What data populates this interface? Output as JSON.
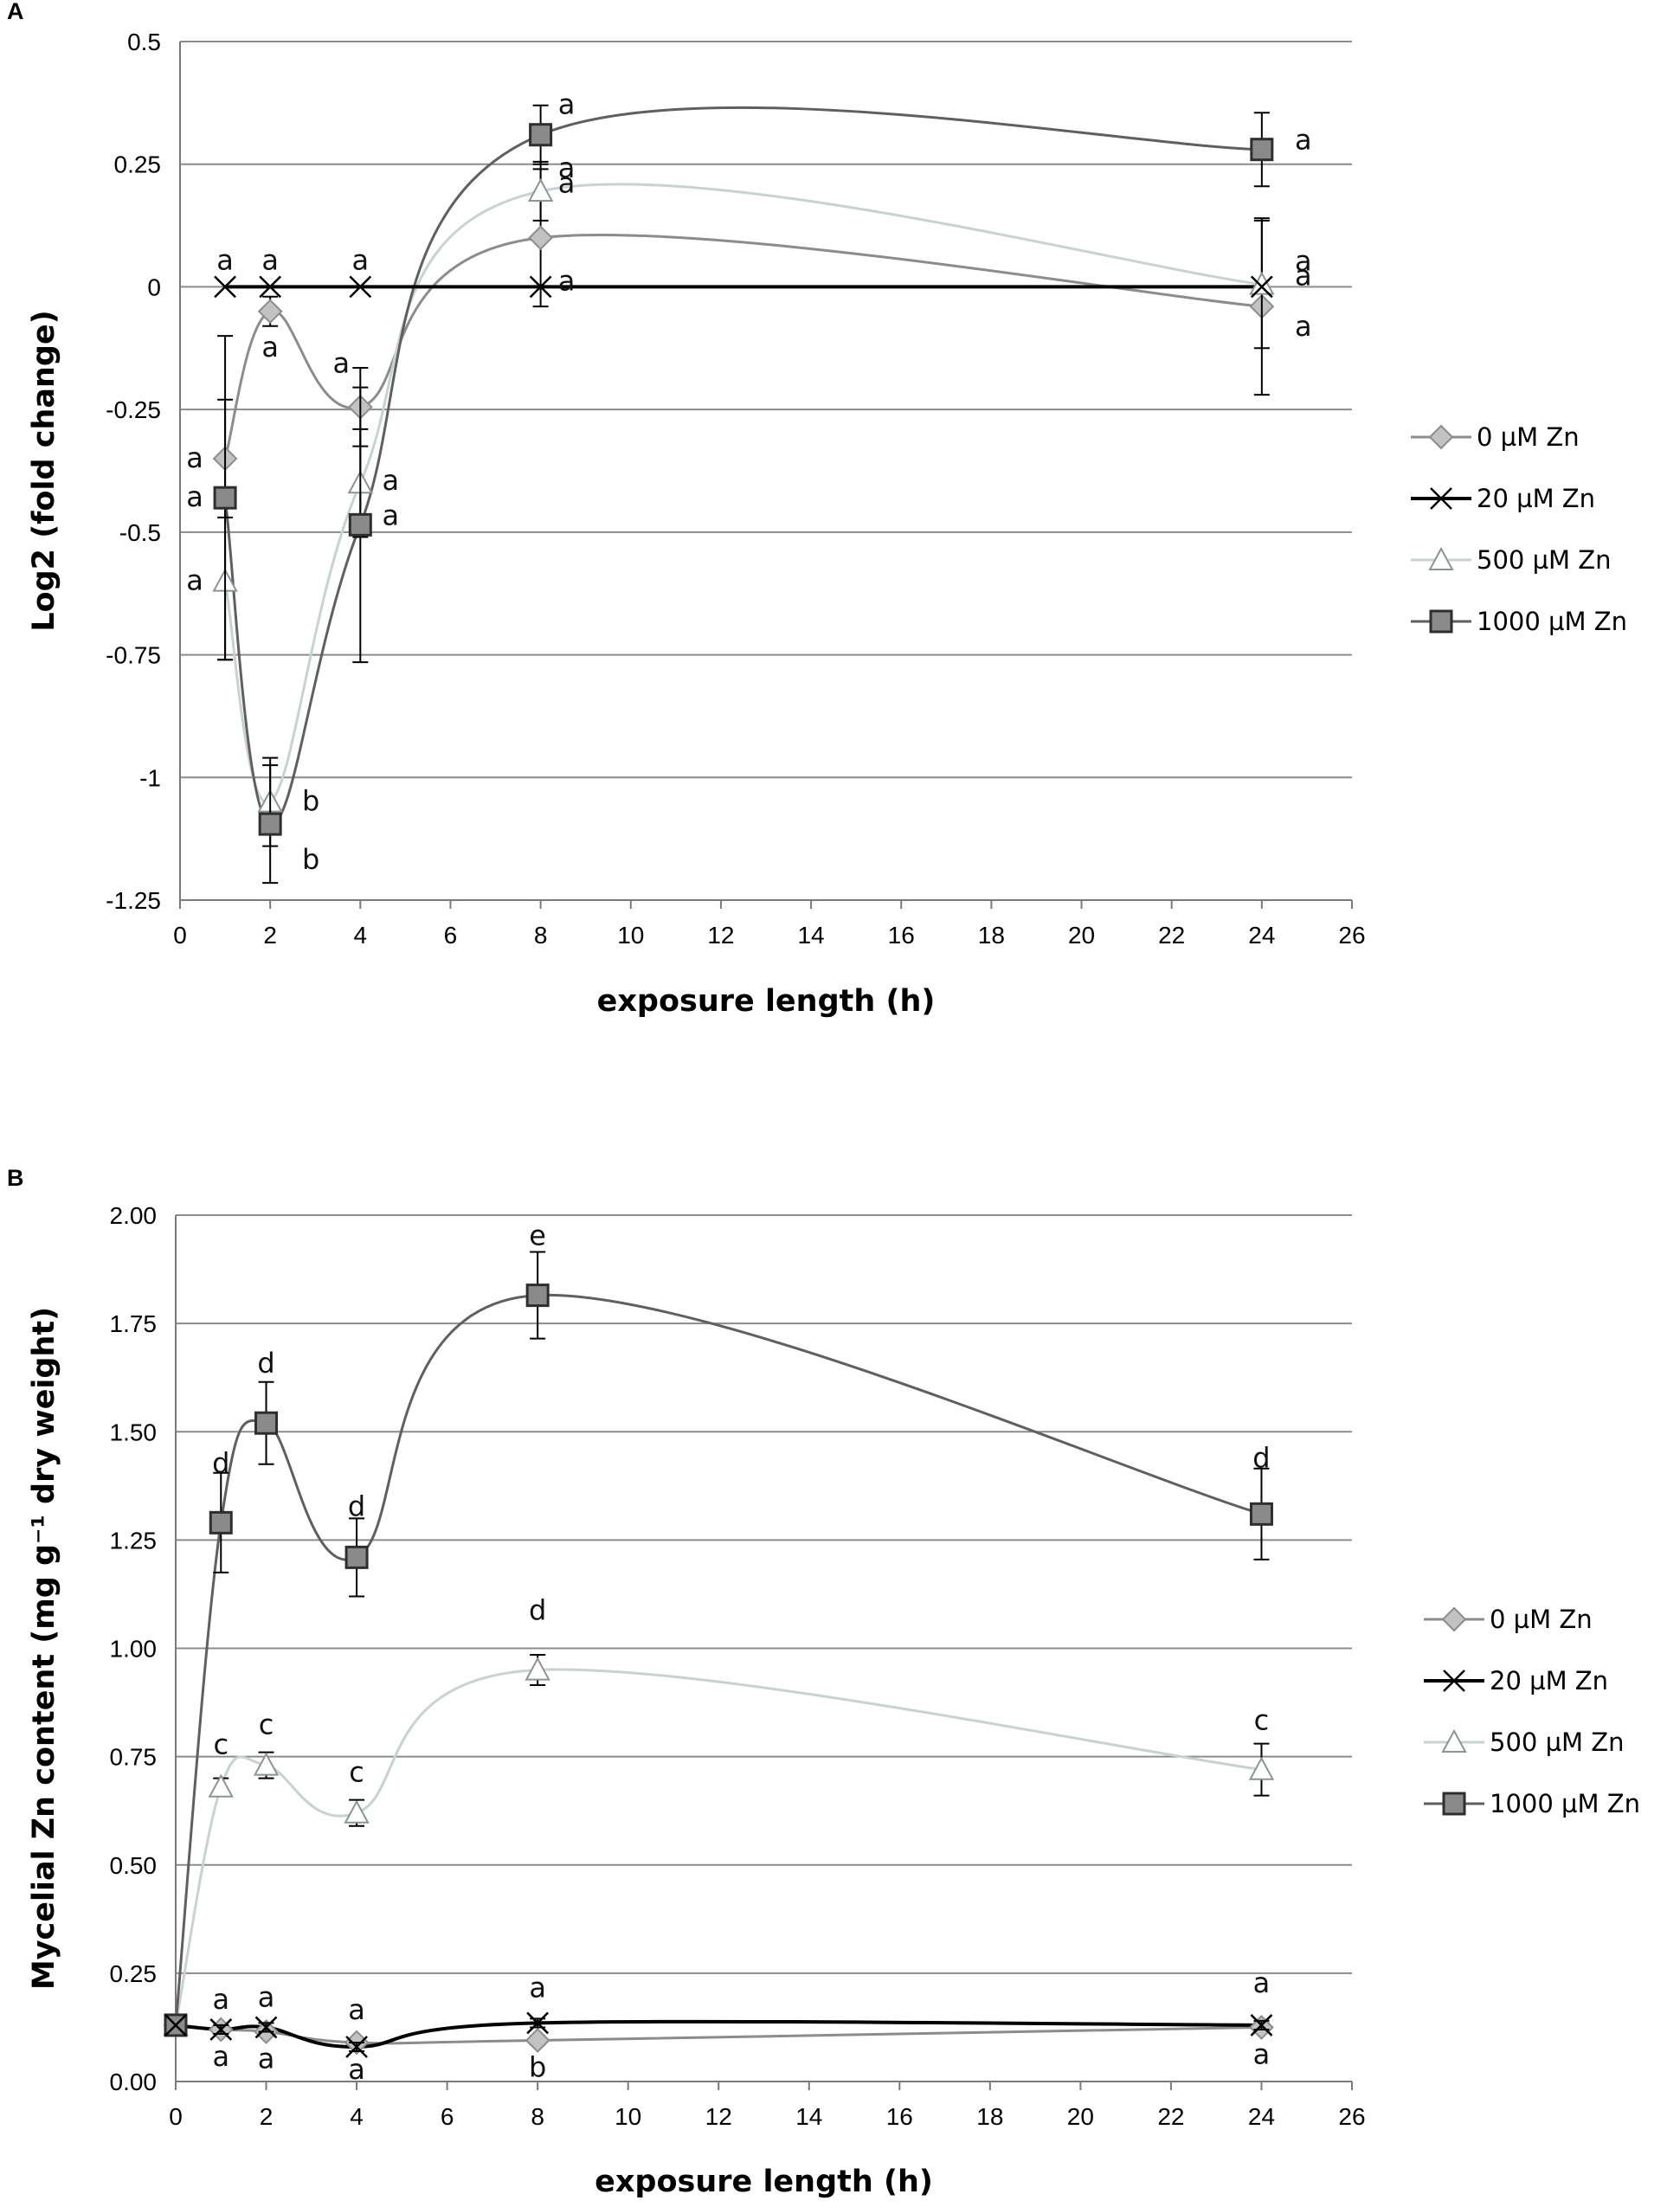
{
  "chart_data": [
    {
      "panel": "A",
      "type": "line",
      "title": "",
      "xlabel": "exposure length (h)",
      "ylabel": "Log2 (fold change)",
      "xlim": [
        0,
        26
      ],
      "ylim": [
        -1.25,
        0.5
      ],
      "xticks": [
        "0",
        "2",
        "4",
        "6",
        "8",
        "10",
        "12",
        "14",
        "16",
        "18",
        "20",
        "22",
        "24",
        "26"
      ],
      "yticks": [
        "0.5",
        "0.25",
        "0",
        "-0.25",
        "-0.5",
        "-0.75",
        "-1",
        "-1.25"
      ],
      "grid": true,
      "legend_position": "right",
      "series": [
        {
          "name": "0 µM Zn",
          "marker": "diamond",
          "color": "#8c8c8c",
          "fill": "#c2c2c2",
          "x": [
            1,
            2,
            4,
            8,
            24
          ],
          "values": [
            -0.35,
            -0.05,
            -0.245,
            0.1,
            -0.04
          ],
          "error": [
            0.12,
            0.03,
            0.08,
            0.14,
            0.18
          ],
          "labels": [
            "a",
            "a",
            "a",
            "a",
            "a"
          ]
        },
        {
          "name": "20 µM Zn",
          "marker": "x",
          "color": "#000000",
          "fill": "none",
          "x": [
            1,
            2,
            4,
            8,
            24
          ],
          "values": [
            0,
            0,
            0,
            0,
            0
          ],
          "error": [
            0,
            0,
            0,
            0,
            0
          ],
          "labels": [
            "a",
            "a",
            "a",
            "a",
            "a"
          ]
        },
        {
          "name": "500 µM Zn",
          "marker": "triangle",
          "color": "#c8d2d2",
          "fill": "#ffffff",
          "x": [
            1,
            2,
            4,
            8,
            24
          ],
          "values": [
            -0.6,
            -1.05,
            -0.4,
            0.195,
            0.005
          ],
          "error": [
            0.16,
            0.09,
            0.11,
            0.06,
            0.13
          ],
          "labels": [
            "a",
            "b",
            "a",
            "a",
            "a"
          ]
        },
        {
          "name": "1000 µM Zn",
          "marker": "square",
          "color": "#5f5f5f",
          "fill": "#8a8a8a",
          "x": [
            1,
            2,
            4,
            8,
            24
          ],
          "values": [
            -0.43,
            -1.095,
            -0.485,
            0.31,
            0.28
          ],
          "error": [
            0.33,
            0.12,
            0.28,
            0.06,
            0.075
          ],
          "labels": [
            "a",
            "b",
            "a",
            "a",
            "a"
          ]
        }
      ]
    },
    {
      "panel": "B",
      "type": "line",
      "title": "",
      "xlabel": "exposure length (h)",
      "ylabel": "Mycelial Zn content (mg g⁻¹ dry weight)",
      "xlim": [
        0,
        26
      ],
      "ylim": [
        0,
        2
      ],
      "xticks": [
        "0",
        "2",
        "4",
        "6",
        "8",
        "10",
        "12",
        "14",
        "16",
        "18",
        "20",
        "22",
        "24",
        "26"
      ],
      "yticks": [
        "2.00",
        "1.75",
        "1.50",
        "1.25",
        "1.00",
        "0.75",
        "0.50",
        "0.25",
        "0.00"
      ],
      "grid": true,
      "legend_position": "right",
      "series": [
        {
          "name": "0 µM Zn",
          "marker": "diamond",
          "color": "#8c8c8c",
          "fill": "#c2c2c2",
          "x": [
            0,
            1,
            2,
            4,
            8,
            24
          ],
          "values": [
            0.13,
            0.12,
            0.115,
            0.09,
            0.095,
            0.125
          ],
          "error": [
            0,
            0.01,
            0.01,
            0.01,
            0.01,
            0.01
          ],
          "labels": [
            "",
            "a",
            "a",
            "a",
            "b",
            "a"
          ]
        },
        {
          "name": "20 µM Zn",
          "marker": "x",
          "color": "#000000",
          "fill": "none",
          "x": [
            0,
            1,
            2,
            4,
            8,
            24
          ],
          "values": [
            0.13,
            0.12,
            0.125,
            0.08,
            0.135,
            0.13
          ],
          "error": [
            0,
            0.01,
            0.01,
            0.01,
            0.01,
            0.01
          ],
          "labels": [
            "",
            "a",
            "a",
            "a",
            "a",
            "a"
          ]
        },
        {
          "name": "500 µM Zn",
          "marker": "triangle",
          "color": "#c8d2d2",
          "fill": "#ffffff",
          "x": [
            0,
            1,
            2,
            4,
            8,
            24
          ],
          "values": [
            0.13,
            0.68,
            0.73,
            0.62,
            0.95,
            0.72
          ],
          "error": [
            0,
            0.02,
            0.03,
            0.03,
            0.035,
            0.06
          ],
          "labels": [
            "",
            "c",
            "c",
            "c",
            "d",
            "c"
          ]
        },
        {
          "name": "1000 µM Zn",
          "marker": "square",
          "color": "#5f5f5f",
          "fill": "#8a8a8a",
          "x": [
            0,
            1,
            2,
            4,
            8,
            24
          ],
          "values": [
            0.13,
            1.29,
            1.52,
            1.21,
            1.815,
            1.31
          ],
          "error": [
            0,
            0.115,
            0.095,
            0.09,
            0.1,
            0.105
          ],
          "labels": [
            "",
            "d",
            "d",
            "d",
            "e",
            "d"
          ]
        }
      ]
    }
  ]
}
